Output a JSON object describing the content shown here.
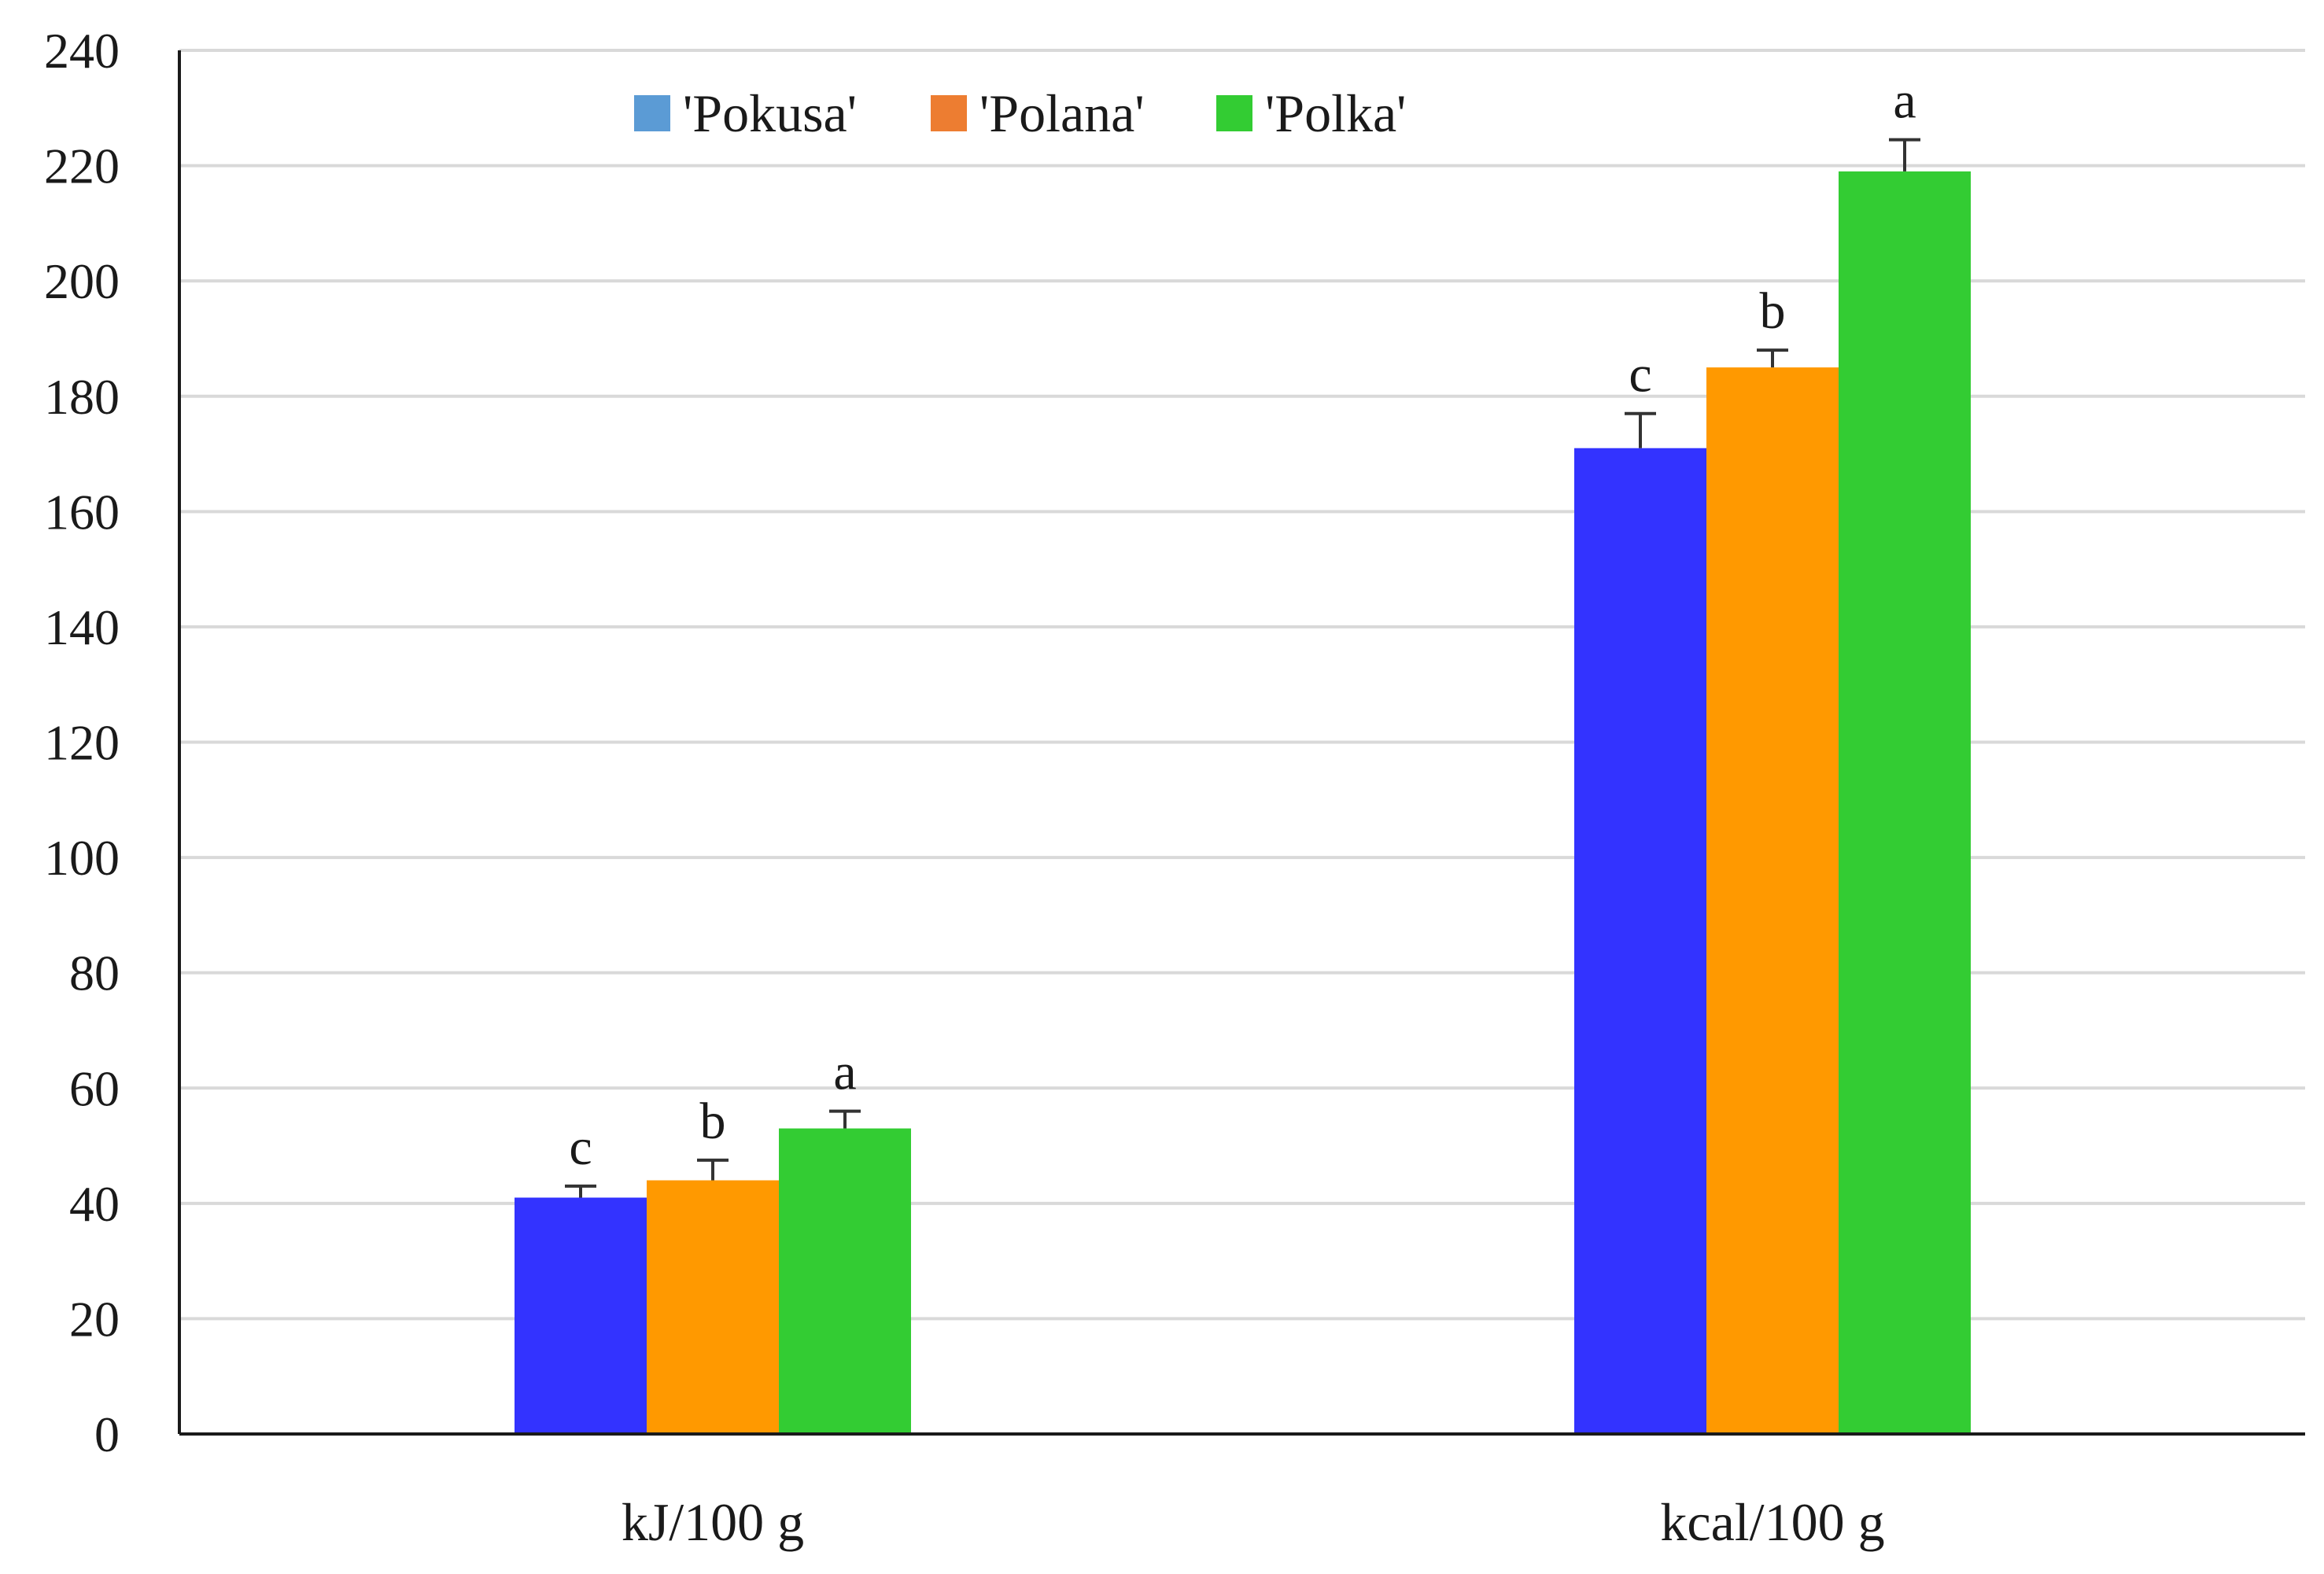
{
  "chart_data": {
    "type": "bar",
    "title": "",
    "xlabel": "",
    "ylabel": "",
    "categories": [
      "kJ/100 g",
      "kcal/100 g"
    ],
    "series": [
      {
        "name": "'Pokusa'",
        "values": [
          41,
          171
        ],
        "errors": [
          2,
          6
        ],
        "letters": [
          "c",
          "c"
        ]
      },
      {
        "name": "'Polana'",
        "values": [
          44,
          185
        ],
        "errors": [
          3.5,
          3
        ],
        "letters": [
          "b",
          "b"
        ]
      },
      {
        "name": "'Polka'",
        "values": [
          53,
          219
        ],
        "errors": [
          3,
          5.5
        ],
        "letters": [
          "a",
          "a"
        ]
      }
    ],
    "bar_colors": [
      "#3333ff",
      "#ff9900",
      "#33cc33"
    ],
    "legend_swatch_colors": [
      "#5b9bd5",
      "#ed7d31",
      "#33cc33"
    ],
    "ylim": [
      0,
      240
    ],
    "yticks": [
      0,
      20,
      40,
      60,
      80,
      100,
      120,
      140,
      160,
      180,
      200,
      220,
      240
    ],
    "grid": true,
    "legend_position": "top-left"
  }
}
